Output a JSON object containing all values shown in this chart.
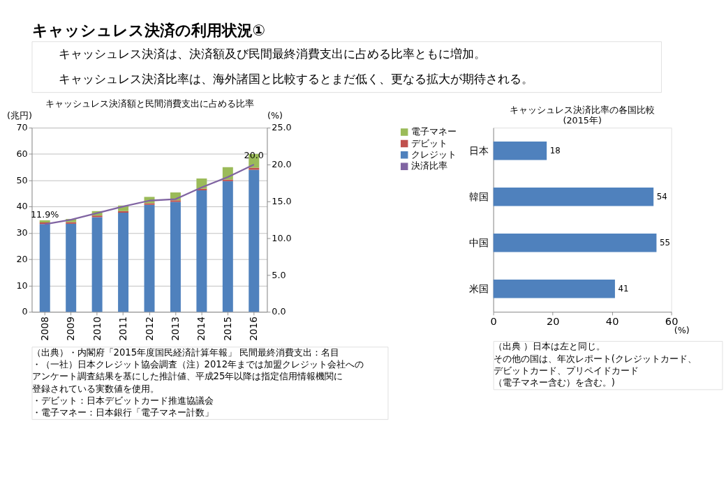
{
  "chart_data": [
    {
      "type": "other",
      "title": "キャッシュレス決済の利用状況①",
      "annotations": [
        "キャッシュレス決済は、決済額及び民間最終消費支出に占める比率ともに増加。",
        "キャッシュレス決済比率は、海外諸国と比較するとまだ低く、更なる拡大が期待される。"
      ]
    },
    {
      "type": "bar",
      "title": "キャッシュレス決済額と民間消費支出に占める比率",
      "ylabel": "(兆円)",
      "y2label": "(%)",
      "categories": [
        "2008",
        "2009",
        "2010",
        "2011",
        "2012",
        "2013",
        "2014",
        "2015",
        "2016"
      ],
      "stacked": true,
      "grid": "y",
      "legend": "right",
      "ylim": [
        0,
        70
      ],
      "yticks": [
        0,
        10,
        20,
        30,
        40,
        50,
        60,
        70
      ],
      "y2lim": [
        0,
        25
      ],
      "y2ticks": [
        {
          "value": 0,
          "label": "0.0"
        },
        {
          "value": 5,
          "label": "5.0"
        },
        {
          "value": 10,
          "label": "10.0"
        },
        {
          "value": 15,
          "label": "15.0"
        },
        {
          "value": 20,
          "label": "20.0"
        },
        {
          "value": 25,
          "label": "25.0"
        }
      ],
      "series": [
        {
          "name": "クレジット",
          "color": "#4f81bd",
          "values": [
            33.4,
            33.5,
            36.0,
            37.7,
            40.7,
            41.8,
            46.2,
            49.7,
            54.0
          ]
        },
        {
          "name": "デビット",
          "color": "#c0504d",
          "values": [
            0.6,
            0.6,
            0.6,
            0.6,
            0.6,
            0.6,
            0.6,
            0.6,
            0.8
          ]
        },
        {
          "name": "電子マネー",
          "color": "#9bbb59",
          "values": [
            0.8,
            1.2,
            1.7,
            2.1,
            2.4,
            3.0,
            3.9,
            4.7,
            5.2
          ]
        },
        {
          "name": "決済比率",
          "type": "line",
          "axis": "y2",
          "color": "#8064a2",
          "values": [
            11.9,
            12.5,
            13.4,
            14.3,
            15.1,
            15.3,
            16.9,
            18.3,
            20.0
          ],
          "value_labels": [
            "11.9%",
            null,
            null,
            null,
            null,
            null,
            null,
            null,
            "20.0"
          ]
        }
      ],
      "annotations": [
        "（出典）・内閣府「2015年度国民経済計算年報」 民間最終消費支出：名目",
        "・（一社）日本クレジット協会調査（注）2012年までは加盟クレジット会社への",
        "　アンケート調査結果を基にした推計値、平成25年以降は指定信用情報機関に",
        "　登録されている実数値を使用。",
        "・デビット：日本デビットカード推進協議会",
        "・電子マネー：日本銀行「電子マネー計数」"
      ]
    },
    {
      "type": "bar",
      "orientation": "horizontal",
      "title": "キャッシュレス決済比率の各国比較\n(2015年)",
      "xlabel": "(%)",
      "categories": [
        "日本",
        "韓国",
        "中国",
        "米国"
      ],
      "values": [
        18,
        54,
        55,
        41
      ],
      "color": "#4f81bd",
      "xlim": [
        0,
        60
      ],
      "xticks": [
        0,
        20,
        40,
        60
      ],
      "data_labels": true,
      "grid": false,
      "legend": false,
      "annotations": [
        "（出典 ）日本は左と同じ。",
        "その他の国は、年次レポート(クレジットカード、",
        "デビットカード、プリペイドカード",
        "（電子マネー含む）を含む。)"
      ]
    }
  ]
}
